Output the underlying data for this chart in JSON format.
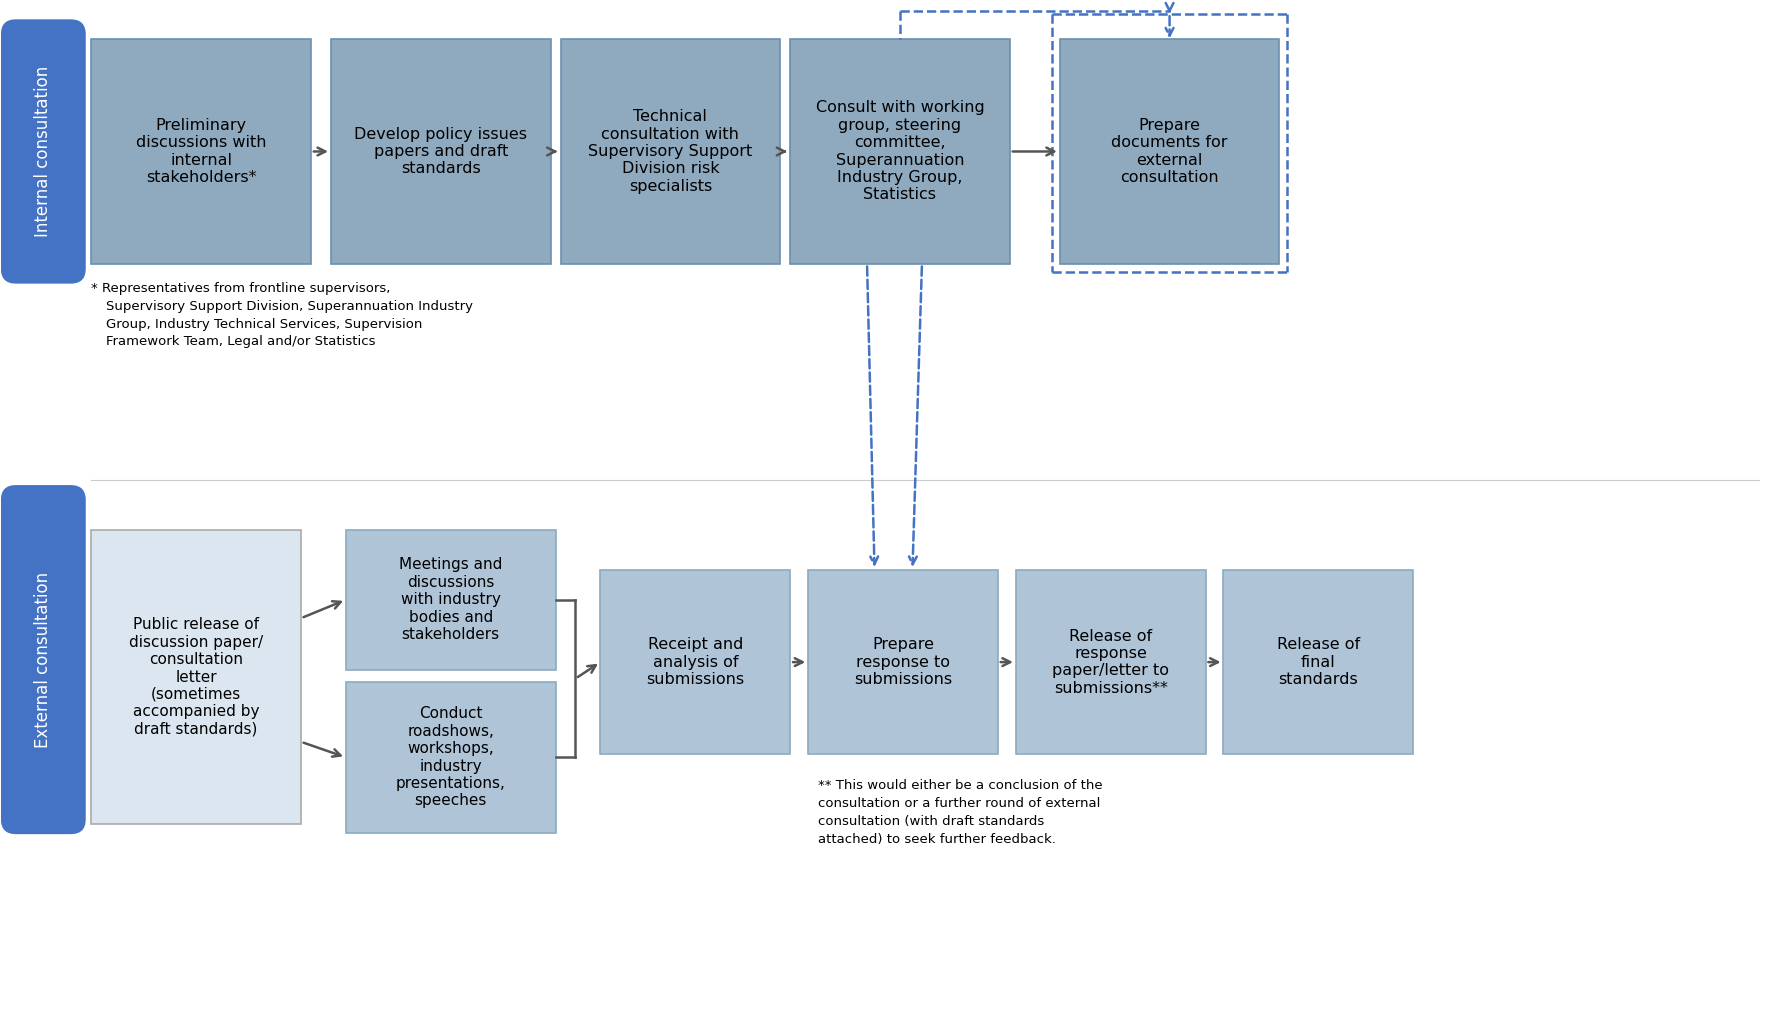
{
  "bg_color": "#ffffff",
  "box_fill_internal": "#8faabf",
  "box_fill_external_light": "#b0c4d8",
  "box_fill_white": "#dce6f0",
  "box_edge_internal": "#6a8faf",
  "box_edge_external": "#8aabbf",
  "box_edge_white": "#aaaaaa",
  "arrow_color": "#555555",
  "dashed_color": "#4472c4",
  "pill_color": "#4472c4",
  "internal_label": "Internal consultation",
  "external_label": "External consultation",
  "footnote1_lines": [
    "* Representatives from frontline supervisors,",
    "Supervisory Support Division, Superannuation Industry",
    "Group, Industry Technical Services, Supervision",
    "Framework Team, Legal and/or Statistics"
  ],
  "footnote2_lines": [
    "** This would either be a conclusion of the",
    "consultation or a further round of external",
    "consultation (with draft standards",
    "attached) to seek further feedback."
  ]
}
